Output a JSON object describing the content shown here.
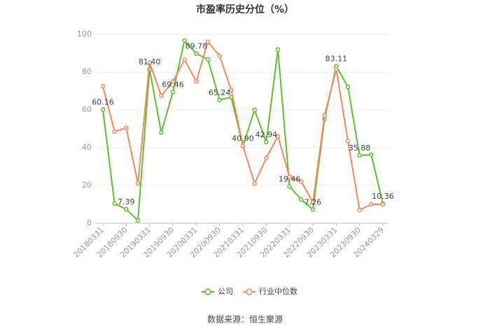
{
  "chart_data": {
    "type": "line",
    "title": "市盈率历史分位（%）",
    "source": "数据来源：恒生聚源",
    "categories": [
      "20180331",
      null,
      "20180930",
      null,
      "20190331",
      null,
      "20190930",
      null,
      "20200331",
      null,
      "20200930",
      null,
      "20210331",
      null,
      "20210930",
      null,
      "20220331",
      null,
      "20220930",
      null,
      "20230331",
      null,
      "20230930",
      null,
      "20240329"
    ],
    "series": [
      {
        "name": "公司",
        "color": "#5cc12b",
        "values": [
          60.16,
          10.4,
          7.39,
          1.5,
          81.4,
          48,
          69.46,
          96.7,
          89.78,
          86.7,
          65.24,
          66.7,
          40.9,
          60,
          42.94,
          91.9,
          19.46,
          12.5,
          7.26,
          55.2,
          83.11,
          72.2,
          35.88,
          36.3,
          10.36
        ],
        "value_labels": [
          "60.16",
          null,
          "7.39",
          null,
          "81.40",
          null,
          "69.46",
          null,
          "89.78",
          null,
          "65.24",
          null,
          "40.90",
          null,
          "42.94",
          null,
          "19.46",
          null,
          "7.26",
          null,
          "83.11",
          null,
          "35.88",
          null,
          "10.36"
        ]
      },
      {
        "name": "行业中位数",
        "color": "#f5895b",
        "values": [
          72.5,
          48.5,
          50.5,
          21,
          85,
          67.5,
          75,
          86.5,
          75,
          96,
          88.5,
          70.5,
          41,
          21,
          34.5,
          46,
          24.5,
          22,
          11,
          57,
          81.5,
          43.5,
          7,
          10,
          10
        ]
      }
    ],
    "ylim": [
      0,
      100
    ],
    "yticks": [
      0,
      20,
      40,
      60,
      80,
      100
    ],
    "grid": true
  }
}
